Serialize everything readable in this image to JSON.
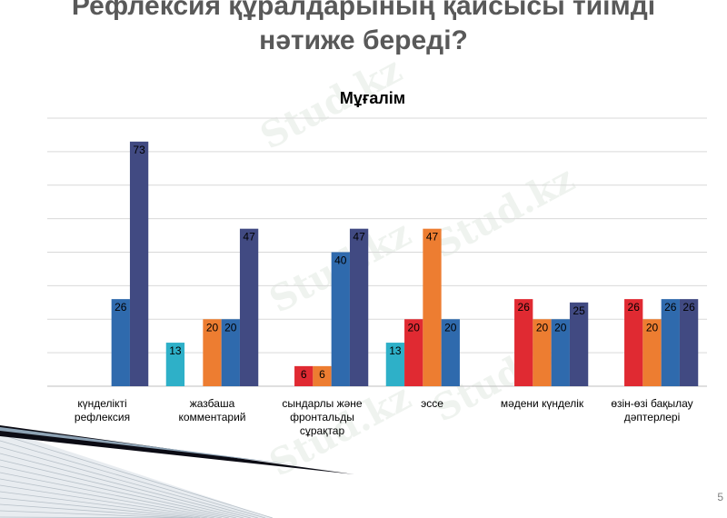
{
  "slide": {
    "title_line1": "Рефлексия құралдарының қайсысы тиімді",
    "title_line2": "нәтиже береді?",
    "page_number": "5",
    "watermark": "Stud.kz"
  },
  "colors": {
    "series": [
      "#2eb0c8",
      "#e02a32",
      "#ed7d31",
      "#2f6aad",
      "#414a82"
    ],
    "grid": "#d9d9d9",
    "axis": "#bfbfbf",
    "text": "#000000"
  },
  "chart_data": {
    "type": "bar",
    "title": "Мұғалім",
    "xlabel": "",
    "ylabel": "",
    "ylim": [
      0,
      80
    ],
    "grid": true,
    "legend": "none",
    "categories": [
      [
        "күнделікті",
        "рефлексия"
      ],
      [
        "жазбаша",
        "комментарий"
      ],
      [
        "сындарлы және",
        "фронтальды",
        "сұрақтар"
      ],
      [
        "эссе"
      ],
      [
        "мәдени күнделік"
      ],
      [
        "өзін-өзі бақылау",
        "дәптерлері"
      ]
    ],
    "series": [
      {
        "values": [
          null,
          13,
          null,
          13,
          null,
          null
        ]
      },
      {
        "values": [
          null,
          null,
          6,
          20,
          26,
          26
        ]
      },
      {
        "values": [
          null,
          20,
          6,
          47,
          20,
          20
        ]
      },
      {
        "values": [
          26,
          20,
          40,
          20,
          20,
          26
        ]
      },
      {
        "values": [
          73,
          47,
          47,
          null,
          25,
          26
        ]
      }
    ]
  }
}
